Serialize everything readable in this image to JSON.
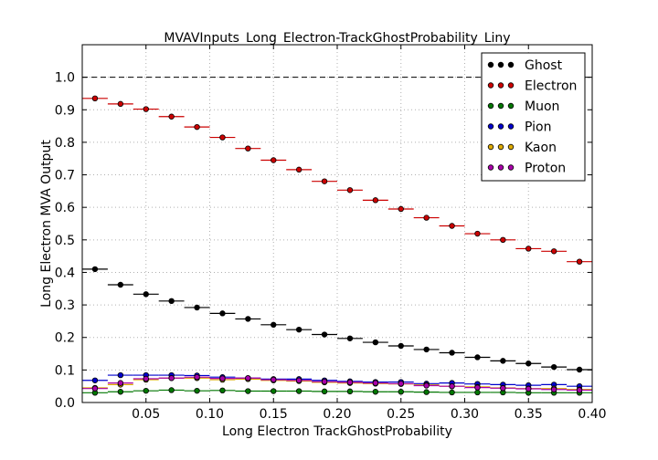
{
  "chart_data": {
    "type": "scatter",
    "title": "MVAVInputs_Long_Electron-TrackGhostProbability_Liny",
    "xlabel": "Long Electron TrackGhostProbability",
    "ylabel": "Long Electron MVA Output",
    "xlim": [
      0.0,
      0.4
    ],
    "ylim": [
      0.0,
      1.1
    ],
    "xticks": [
      "0.05",
      "0.10",
      "0.15",
      "0.20",
      "0.25",
      "0.30",
      "0.35",
      "0.40"
    ],
    "yticks": [
      "0.0",
      "0.1",
      "0.2",
      "0.3",
      "0.4",
      "0.5",
      "0.6",
      "0.7",
      "0.8",
      "0.9",
      "1.0"
    ],
    "reference_line": 1.0,
    "grid": true,
    "legend_position": "top-right",
    "bin_edges": [
      0.0,
      0.02,
      0.04,
      0.06,
      0.08,
      0.1,
      0.12,
      0.14,
      0.16,
      0.18,
      0.2,
      0.22,
      0.24,
      0.26,
      0.28,
      0.3,
      0.32,
      0.34,
      0.36,
      0.38,
      0.4
    ],
    "x": [
      0.01,
      0.03,
      0.05,
      0.07,
      0.09,
      0.11,
      0.13,
      0.15,
      0.17,
      0.19,
      0.21,
      0.23,
      0.25,
      0.27,
      0.29,
      0.31,
      0.33,
      0.35,
      0.37,
      0.39
    ],
    "series": [
      {
        "name": "Ghost",
        "color": "#000000",
        "values": [
          0.41,
          0.362,
          0.333,
          0.312,
          0.292,
          0.274,
          0.257,
          0.239,
          0.224,
          0.209,
          0.197,
          0.185,
          0.174,
          0.163,
          0.153,
          0.139,
          0.128,
          0.12,
          0.109,
          0.101
        ]
      },
      {
        "name": "Electron",
        "color": "#cc0000",
        "values": [
          0.935,
          0.918,
          0.902,
          0.879,
          0.847,
          0.815,
          0.781,
          0.745,
          0.716,
          0.68,
          0.653,
          0.622,
          0.595,
          0.568,
          0.543,
          0.519,
          0.5,
          0.473,
          0.465,
          0.433
        ]
      },
      {
        "name": "Muon",
        "color": "#007700",
        "values": [
          0.03,
          0.033,
          0.036,
          0.038,
          0.036,
          0.037,
          0.035,
          0.035,
          0.035,
          0.034,
          0.034,
          0.033,
          0.033,
          0.032,
          0.031,
          0.031,
          0.031,
          0.03,
          0.03,
          0.03
        ]
      },
      {
        "name": "Pion",
        "color": "#0000cc",
        "values": [
          0.068,
          0.084,
          0.084,
          0.084,
          0.083,
          0.078,
          0.075,
          0.072,
          0.072,
          0.068,
          0.065,
          0.063,
          0.063,
          0.058,
          0.06,
          0.057,
          0.055,
          0.053,
          0.055,
          0.05
        ]
      },
      {
        "name": "Kaon",
        "color": "#ddaa00",
        "values": [
          0.045,
          0.055,
          0.07,
          0.075,
          0.075,
          0.07,
          0.072,
          0.068,
          0.066,
          0.062,
          0.06,
          0.058,
          0.057,
          0.054,
          0.05,
          0.048,
          0.045,
          0.043,
          0.043,
          0.04
        ]
      },
      {
        "name": "Proton",
        "color": "#aa00aa",
        "values": [
          0.043,
          0.06,
          0.073,
          0.075,
          0.078,
          0.074,
          0.075,
          0.07,
          0.068,
          0.064,
          0.062,
          0.06,
          0.058,
          0.052,
          0.05,
          0.046,
          0.044,
          0.042,
          0.04,
          0.038
        ]
      }
    ]
  }
}
